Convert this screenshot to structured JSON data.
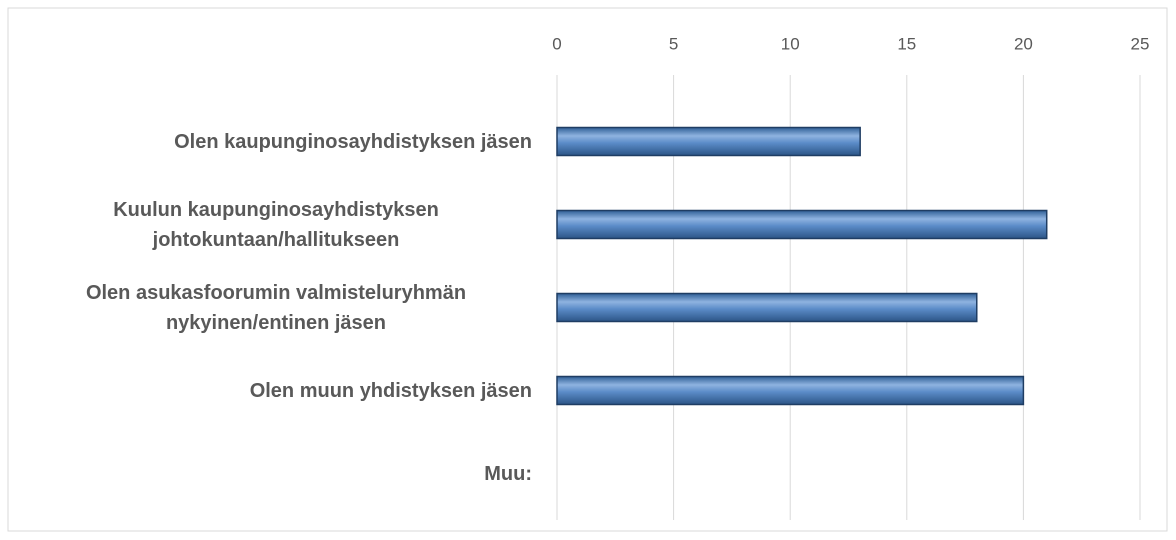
{
  "chart_data": {
    "type": "bar",
    "orientation": "horizontal",
    "categories": [
      "Olen kaupunginosayhdistyksen jäsen",
      "Kuulun kaupunginosayhdistyksen johtokuntaan/hallitukseen",
      "Olen asukasfoorumin valmisteluryhmän nykyinen/entinen jäsen",
      "Olen muun yhdistyksen jäsen",
      "Muu:"
    ],
    "values": [
      13,
      21,
      18,
      20,
      0
    ],
    "color": "#4f81bd",
    "xlim": [
      0,
      25
    ],
    "xticks": [
      0,
      5,
      10,
      15,
      20,
      25
    ],
    "grid": true
  }
}
